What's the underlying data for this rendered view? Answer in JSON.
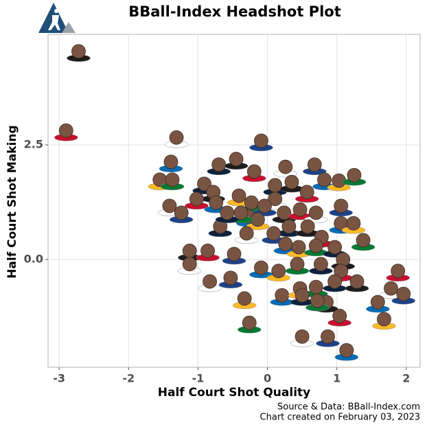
{
  "chart_data": {
    "type": "scatter",
    "title": "BBall-Index Headshot Plot",
    "x_label": "Half Court Shot Quality",
    "y_label": "Half Court Shot Making",
    "source": "Source & Data: BBall-Index.com",
    "created": "Chart created on February 03, 2023",
    "color": "#7a5442",
    "grid": true,
    "xlim": [
      -3.16,
      2.2
    ],
    "ylim": [
      -2.35,
      4.91
    ],
    "xticks": [
      -3,
      -2,
      -1,
      0,
      1,
      2
    ],
    "yticks": [
      {
        "value": 0,
        "label": "0.0"
      },
      2.5
    ],
    "x": [
      -2.72,
      -2.9,
      -1.31,
      -0.09,
      -1.39,
      -1.55,
      -1.37,
      -0.7,
      -0.45,
      -0.19,
      0.26,
      0.68,
      0.82,
      1.03,
      1.25,
      -0.91,
      -0.78,
      -1.02,
      -1.41,
      -1.24,
      -0.74,
      -0.41,
      -0.23,
      0.11,
      0.35,
      0.57,
      0.11,
      -0.04,
      -0.28,
      -0.14,
      -0.38,
      -0.68,
      0.24,
      0.47,
      0.7,
      1.06,
      1.06,
      1.24,
      1.38,
      0.31,
      0.58,
      0.78,
      -0.3,
      0.09,
      0.26,
      0.45,
      0.7,
      0.97,
      -1.12,
      -0.86,
      -1.12,
      -0.48,
      -0.09,
      0.16,
      0.43,
      0.77,
      1.09,
      1.06,
      -0.83,
      -0.53,
      0.21,
      0.47,
      0.7,
      0.97,
      1.29,
      1.88,
      1.78,
      1.96,
      1.59,
      -0.33,
      -0.26,
      0.5,
      0.85,
      1.04,
      0.5,
      0.87,
      1.14,
      1.68,
      0.72,
      -0.58
    ],
    "y": [
      4.54,
      2.81,
      2.66,
      2.59,
      2.13,
      1.74,
      1.74,
      2.07,
      2.19,
      1.92,
      2.02,
      2.07,
      1.74,
      1.72,
      1.84,
      1.65,
      1.47,
      1.32,
      1.17,
      1.02,
      1.24,
      1.39,
      1.24,
      1.62,
      1.69,
      1.47,
      1.32,
      1.17,
      0.94,
      0.87,
      1.02,
      0.72,
      1.02,
      1.09,
      1.02,
      1.17,
      0.79,
      0.79,
      0.42,
      0.72,
      0.72,
      0.49,
      0.57,
      0.57,
      0.34,
      0.27,
      0.3,
      0.27,
      0.19,
      0.19,
      -0.1,
      0.12,
      -0.18,
      -0.25,
      -0.1,
      -0.1,
      0.0,
      -0.25,
      -0.48,
      -0.4,
      -0.78,
      -0.63,
      -0.6,
      -0.48,
      -0.48,
      -0.25,
      -0.63,
      -0.75,
      -0.93,
      -0.85,
      -1.38,
      -0.78,
      -0.93,
      -1.23,
      -1.68,
      -1.68,
      -1.98,
      -1.3,
      -0.9,
      1.02
    ]
  }
}
